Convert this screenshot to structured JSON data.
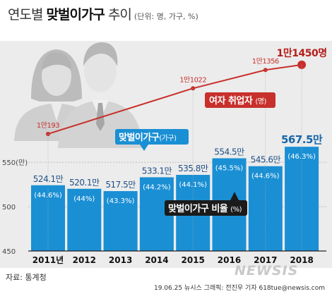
{
  "header": {
    "title_plain": "연도별",
    "title_bold": "맞벌이가구",
    "title_tail": "추이",
    "units": "(단위: 명, 가구, %)"
  },
  "source": "자료: 통계청",
  "credit": "19.06.25 뉴시스 그래픽: 전진우 기자 618tue@newsis.com",
  "watermark": "NEWSIS",
  "colors": {
    "bar": "#1a8fd4",
    "line": "#c8302c",
    "axis_text": "#444444",
    "grid": "#bdbdbd",
    "panel": "#ececec"
  },
  "chart_data": {
    "type": "bar",
    "categories": [
      "2011년",
      "2012",
      "2013",
      "2014",
      "2015",
      "2016",
      "2017",
      "2018"
    ],
    "ylim": [
      450,
      570
    ],
    "y_ticks": [
      450,
      500,
      550
    ],
    "y_tick_labels": [
      "450",
      "500",
      "550(만)"
    ],
    "series": [
      {
        "name": "맞벌이가구(가구)",
        "values": [
          524.1,
          520.1,
          517.5,
          533.1,
          535.8,
          554.5,
          545.6,
          567.5
        ],
        "labels": [
          "524.1만",
          "520.1만",
          "517.5만",
          "533.1만",
          "535.8만",
          "554.5만",
          "545.6만",
          "567.5만"
        ]
      },
      {
        "name": "맞벌이가구 비율(%)",
        "values": [
          44.6,
          44.0,
          43.3,
          44.2,
          44.1,
          45.5,
          44.6,
          46.3
        ],
        "labels": [
          "(44.6%)",
          "(44%)",
          "(43.3%)",
          "(44.2%)",
          "(44.1%)",
          "(45.5%)",
          "(44.6%)",
          "(46.3%)"
        ]
      },
      {
        "name": "여자 취업자(명)",
        "type": "line",
        "x": [
          "2011년",
          "2015",
          "2017",
          "2018"
        ],
        "values": [
          10193,
          11022,
          11356,
          11450
        ],
        "labels": [
          "1만193",
          "1만1022",
          "1만1356",
          "1만1450명"
        ]
      }
    ],
    "legend": {
      "bar": "맞벌이가구",
      "bar_unit": "(가구)",
      "line": "여자 취업자",
      "line_unit": "(명)",
      "ratio": "맞벌이가구 비율",
      "ratio_unit": "(%)"
    }
  }
}
